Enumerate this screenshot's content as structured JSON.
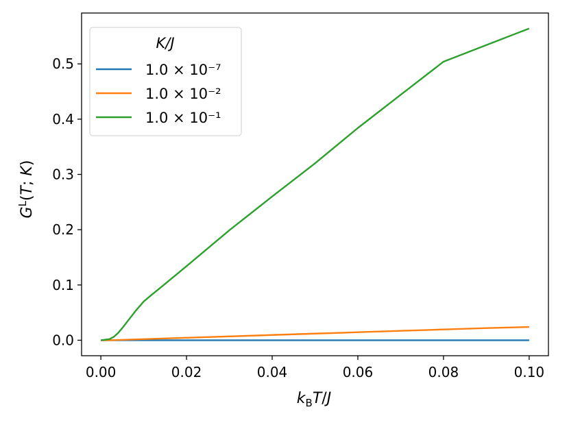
{
  "chart_data": {
    "type": "line",
    "xlabel": "k_B T/J",
    "ylabel": "G^L(T; K)",
    "xlim": [
      -0.0045,
      0.1045
    ],
    "ylim": [
      -0.028,
      0.592
    ],
    "xticks": [
      "0.00",
      "0.02",
      "0.04",
      "0.06",
      "0.08",
      "0.10"
    ],
    "yticks": [
      "0.0",
      "0.1",
      "0.2",
      "0.3",
      "0.4",
      "0.5"
    ],
    "grid": false,
    "legend": {
      "title": "K/J",
      "placement": "top-left"
    },
    "series": [
      {
        "name": "1.0 × 10⁻⁷",
        "color": "#1f77b4",
        "x": [
          0.0,
          0.02,
          0.04,
          0.06,
          0.08,
          0.1
        ],
        "y": [
          0.0,
          0.0,
          0.0,
          0.0,
          0.0,
          0.0
        ]
      },
      {
        "name": "1.0 × 10⁻²",
        "color": "#ff7f0e",
        "x": [
          0.0,
          0.002,
          0.004,
          0.01,
          0.02,
          0.03,
          0.04,
          0.05,
          0.06,
          0.07,
          0.08,
          0.09,
          0.1
        ],
        "y": [
          0.0,
          0.0,
          0.0005,
          0.002,
          0.0045,
          0.007,
          0.0095,
          0.012,
          0.0145,
          0.017,
          0.0195,
          0.022,
          0.024
        ]
      },
      {
        "name": "1.0 × 10⁻¹",
        "color": "#2ca02c",
        "x": [
          0.0,
          0.002,
          0.003,
          0.004,
          0.005,
          0.006,
          0.007,
          0.008,
          0.01,
          0.012,
          0.015,
          0.02,
          0.03,
          0.04,
          0.05,
          0.06,
          0.07,
          0.08,
          0.09,
          0.1
        ],
        "y": [
          0.0,
          0.002,
          0.006,
          0.013,
          0.022,
          0.032,
          0.042,
          0.052,
          0.07,
          0.083,
          0.102,
          0.134,
          0.199,
          0.26,
          0.32,
          0.384,
          0.444,
          0.504,
          0.534,
          0.564
        ]
      }
    ]
  }
}
